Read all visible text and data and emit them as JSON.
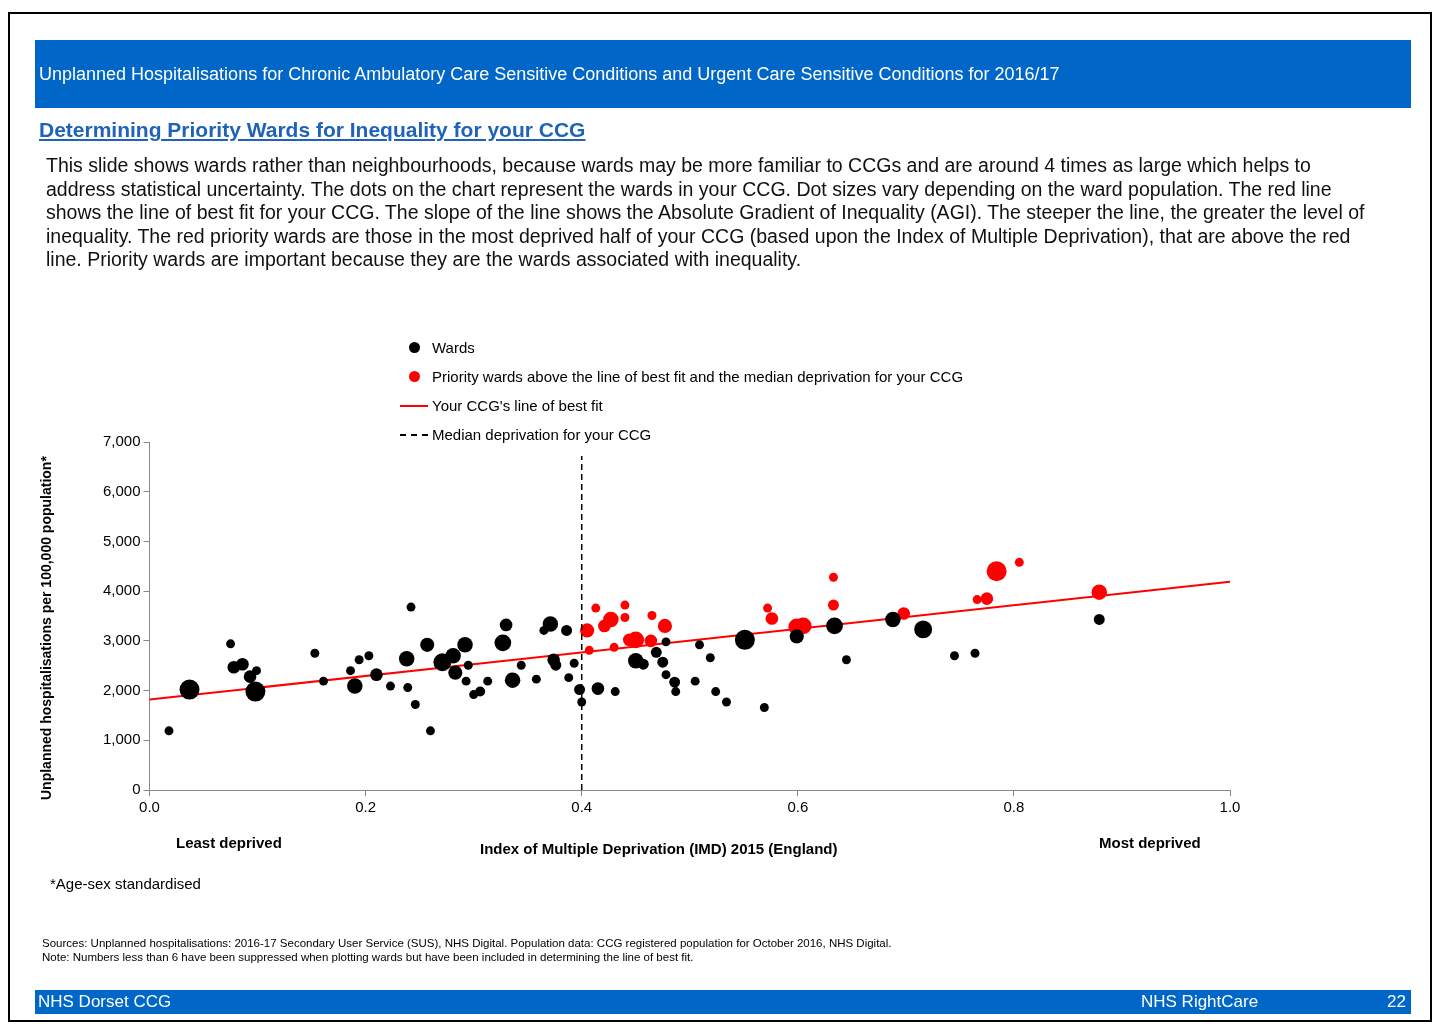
{
  "chart_data": {
    "type": "bubble",
    "title": "Unplanned Hospitalisations for Chronic Ambulatory Care Sensitive Conditions and Urgent Care Sensitive Conditions for 2016/17",
    "subtitle": "Determining Priority Wards for Inequality for your CCG",
    "xlabel": "Index of Multiple Deprivation (IMD) 2015 (England)",
    "ylabel": "Unplanned hospitalisations  per 100,000 population*",
    "xlim": [
      0,
      1
    ],
    "xticks": [
      {
        "value": 0,
        "label": "0.0"
      },
      0.2,
      0.4,
      0.6,
      0.8,
      {
        "value": 1,
        "label": "1.0"
      }
    ],
    "ylim": [
      0,
      7000
    ],
    "yticks": [
      {
        "value": 0,
        "label": "0"
      },
      {
        "value": 1000,
        "label": "1,000"
      },
      {
        "value": 2000,
        "label": "2,000"
      },
      {
        "value": 3000,
        "label": "3,000"
      },
      {
        "value": 4000,
        "label": "4,000"
      },
      {
        "value": 5000,
        "label": "5,000"
      },
      {
        "value": 6000,
        "label": "6,000"
      },
      {
        "value": 7000,
        "label": "7,000"
      }
    ],
    "grid": false,
    "legend": "top",
    "series": [
      {
        "name": "Wards",
        "color": "#000000",
        "x": [
          0.018,
          0.037,
          0.075,
          0.078,
          0.086,
          0.093,
          0.099,
          0.098,
          0.153,
          0.161,
          0.186,
          0.19,
          0.194,
          0.203,
          0.21,
          0.223,
          0.238,
          0.239,
          0.242,
          0.246,
          0.257,
          0.26,
          0.271,
          0.281,
          0.283,
          0.292,
          0.295,
          0.293,
          0.3,
          0.306,
          0.313,
          0.327,
          0.33,
          0.336,
          0.344,
          0.358,
          0.371,
          0.365,
          0.374,
          0.376,
          0.386,
          0.388,
          0.393,
          0.398,
          0.4,
          0.415,
          0.431,
          0.45,
          0.457,
          0.469,
          0.478,
          0.475,
          0.478,
          0.486,
          0.487,
          0.505,
          0.509,
          0.519,
          0.524,
          0.534,
          0.569,
          0.551,
          0.599,
          0.634,
          0.645,
          0.688,
          0.716,
          0.745,
          0.764,
          0.879
        ],
        "values": [
          1190,
          2020,
          2940,
          2470,
          2530,
          2280,
          2400,
          1980,
          2750,
          2190,
          2400,
          2090,
          2620,
          2700,
          2320,
          2090,
          2640,
          2060,
          3680,
          1720,
          2920,
          1190,
          2570,
          2700,
          2360,
          2920,
          2510,
          2190,
          1920,
          1980,
          2190,
          2960,
          3320,
          2210,
          2510,
          2230,
          3340,
          3210,
          2620,
          2510,
          3210,
          2260,
          2550,
          2020,
          1770,
          2040,
          1980,
          2600,
          2530,
          2770,
          2980,
          2570,
          2320,
          2170,
          1980,
          2190,
          2920,
          2660,
          1980,
          1770,
          1660,
          3020,
          3090,
          3300,
          2620,
          3430,
          3230,
          2700,
          2750,
          3430
        ],
        "sizes": [
          0.2,
          1,
          0.2,
          0.4,
          0.4,
          0.4,
          0.2,
          1,
          0.2,
          0.2,
          0.2,
          0.6,
          0.2,
          0.2,
          0.4,
          0.2,
          0.6,
          0.2,
          0.2,
          0.2,
          0.5,
          0.2,
          0.8,
          0.6,
          0.5,
          0.6,
          0.2,
          0.2,
          0.2,
          0.25,
          0.2,
          0.7,
          0.4,
          0.6,
          0.2,
          0.2,
          0.6,
          0.2,
          0.4,
          0.3,
          0.3,
          0.2,
          0.2,
          0.3,
          0.2,
          0.4,
          0.2,
          0.6,
          0.3,
          0.3,
          0.2,
          0.3,
          0.2,
          0.3,
          0.2,
          0.2,
          0.2,
          0.2,
          0.2,
          0.2,
          0.2,
          1,
          0.5,
          0.7,
          0.2,
          0.6,
          0.8,
          0.2,
          0.2,
          0.3
        ],
        "marker": "circle"
      },
      {
        "name": "Priority wards above the line of best fit and the median deprivation for your CCG",
        "color": "#ff0000",
        "x": [
          0.405,
          0.407,
          0.413,
          0.421,
          0.427,
          0.44,
          0.44,
          0.43,
          0.444,
          0.45,
          0.464,
          0.465,
          0.477,
          0.572,
          0.576,
          0.599,
          0.605,
          0.633,
          0.633,
          0.698,
          0.766,
          0.775,
          0.784,
          0.805,
          0.879
        ],
        "values": [
          3210,
          2810,
          3660,
          3300,
          3430,
          3470,
          3720,
          2870,
          3020,
          3020,
          3000,
          3510,
          3300,
          3660,
          3450,
          3280,
          3300,
          3720,
          4280,
          3550,
          3830,
          3850,
          4400,
          4580,
          3980
        ],
        "sizes": [
          0.5,
          0.2,
          0.2,
          0.4,
          0.6,
          0.2,
          0.2,
          0.2,
          0.4,
          0.7,
          0.4,
          0.2,
          0.5,
          0.2,
          0.4,
          0.7,
          0.7,
          0.3,
          0.2,
          0.4,
          0.2,
          0.4,
          1,
          0.2,
          0.6
        ],
        "marker": "circle"
      },
      {
        "name": "Your CCG's line of best fit",
        "type": "line",
        "color": "#ff0000",
        "x": [
          0,
          1
        ],
        "values": [
          1820,
          4190
        ]
      }
    ],
    "ref_lines": [
      {
        "axis": "x",
        "value": 0.4,
        "label": "Median deprivation for your CCG",
        "color": "#000000",
        "line_style": "dashed"
      }
    ],
    "annotations": [
      "This slide shows wards rather than neighbourhoods, because wards may be more familiar to CCGs and are around 4 times as large which helps to address statistical uncertainty. The dots on the chart represent the wards in your CCG. Dot sizes vary depending on the ward population. The red line shows the line of best fit for your CCG. The slope of the line shows the Absolute Gradient of Inequality (AGI). The steeper the line, the greater the level of inequality. The red priority wards are those in the most deprived half of your CCG (based upon the Index of Multiple Deprivation), that are above the red line. Priority wards are important because they are the wards associated with inequality.",
      "Least deprived",
      "Most deprived",
      "*Age-sex standardised",
      "Sources: Unplanned hospitalisations: 2016-17 Secondary User Service (SUS), NHS Digital.  Population data: CCG registered population for October 2016, NHS Digital.",
      "Note:  Numbers less than 6 have been suppressed when plotting wards but have been included in determining the line of best fit.",
      "NHS Dorset CCG",
      "NHS RightCare",
      "22"
    ]
  }
}
